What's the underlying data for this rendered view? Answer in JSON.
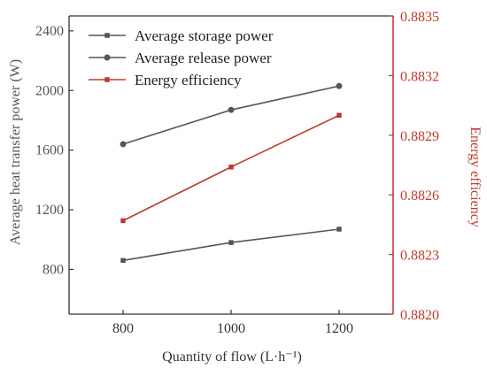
{
  "chart_data": {
    "type": "line",
    "x": [
      800,
      1000,
      1200
    ],
    "xlabel": "Quantity of flow (L·h⁻¹)",
    "xlim": [
      700,
      1300
    ],
    "xticks": [
      "800",
      "1000",
      "1200"
    ],
    "ylabel_left": "Average heat transfer power (W)",
    "ylim_left": [
      500,
      2500
    ],
    "yticks_left": [
      "800",
      "1200",
      "1600",
      "2000",
      "2400"
    ],
    "ylabel_right": "Energy efficiency",
    "ylim_right": [
      0.882,
      0.8835
    ],
    "yticks_right": [
      "0.8820",
      "0.8823",
      "0.8826",
      "0.8829",
      "0.8832",
      "0.8835"
    ],
    "series": [
      {
        "name": "Average storage power",
        "axis": "left",
        "marker": "square",
        "color": "#555555",
        "values": [
          860,
          980,
          1070
        ]
      },
      {
        "name": "Average release power",
        "axis": "left",
        "marker": "circle",
        "color": "#555555",
        "values": [
          1640,
          1870,
          2030
        ]
      },
      {
        "name": "Energy efficiency",
        "axis": "right",
        "marker": "square",
        "color": "#c0392b",
        "values": [
          0.88247,
          0.88274,
          0.883
        ]
      }
    ],
    "legend_position": "top-left",
    "grid": false,
    "colors": {
      "left_axis": "#555555",
      "right_axis": "#c0392b"
    }
  }
}
